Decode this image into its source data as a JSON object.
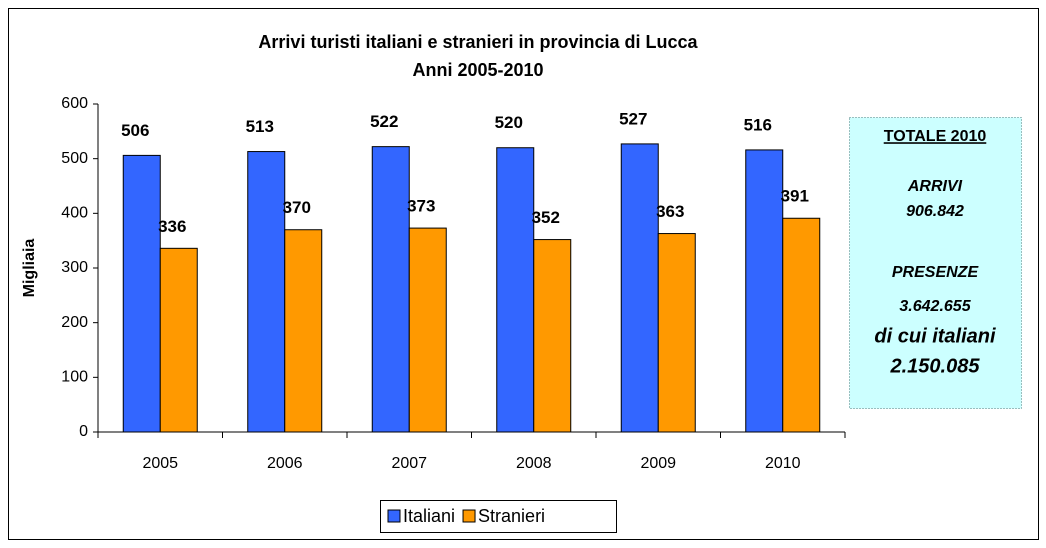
{
  "chart_data": {
    "type": "bar",
    "title": "Arrivi turisti italiani e stranieri in provincia di Lucca",
    "subtitle": "Anni 2005-2010",
    "y_label": "Migliaia",
    "categories": [
      "2005",
      "2006",
      "2007",
      "2008",
      "2009",
      "2010"
    ],
    "series": [
      {
        "name": "Italiani",
        "color": "#3366ff",
        "values": [
          506,
          513,
          522,
          520,
          527,
          516
        ]
      },
      {
        "name": "Stranieri",
        "color": "#ff9900",
        "values": [
          336,
          370,
          373,
          352,
          363,
          391
        ]
      }
    ],
    "ylim": [
      0,
      600
    ],
    "yticks": [
      0,
      100,
      200,
      300,
      400,
      500,
      600
    ],
    "grid": false,
    "legend": "bottom",
    "annotation": {
      "heading": "TOTALE 2010",
      "lines": [
        "ARRIVI",
        "906.842",
        "PRESENZE",
        "3.642.655",
        "di cui italiani",
        "2.150.085"
      ]
    }
  }
}
